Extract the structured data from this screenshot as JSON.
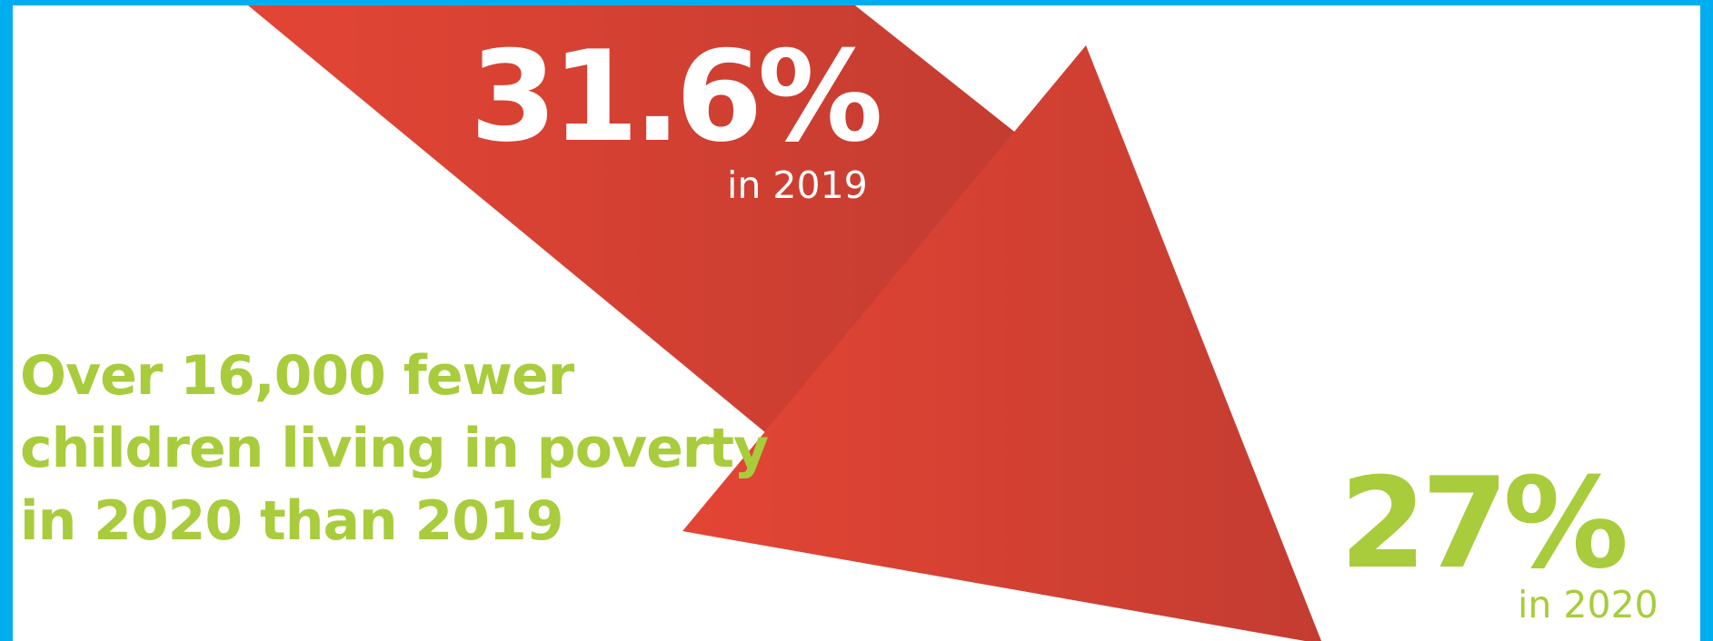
{
  "colors": {
    "frame": "#00aeef",
    "background": "#ffffff",
    "arrow_light": "#e34534",
    "arrow_dark": "#c43c31",
    "stat_2019_text": "#ffffff",
    "accent_green": "#a8cc3c"
  },
  "stat_2019": {
    "value": "31.6%",
    "label": "in 2019"
  },
  "stat_2020": {
    "value": "27%",
    "label": "in 2020"
  },
  "headline": {
    "lines": [
      "Over 16,000 fewer",
      "children living in poverty",
      "in 2020 than 2019"
    ]
  }
}
